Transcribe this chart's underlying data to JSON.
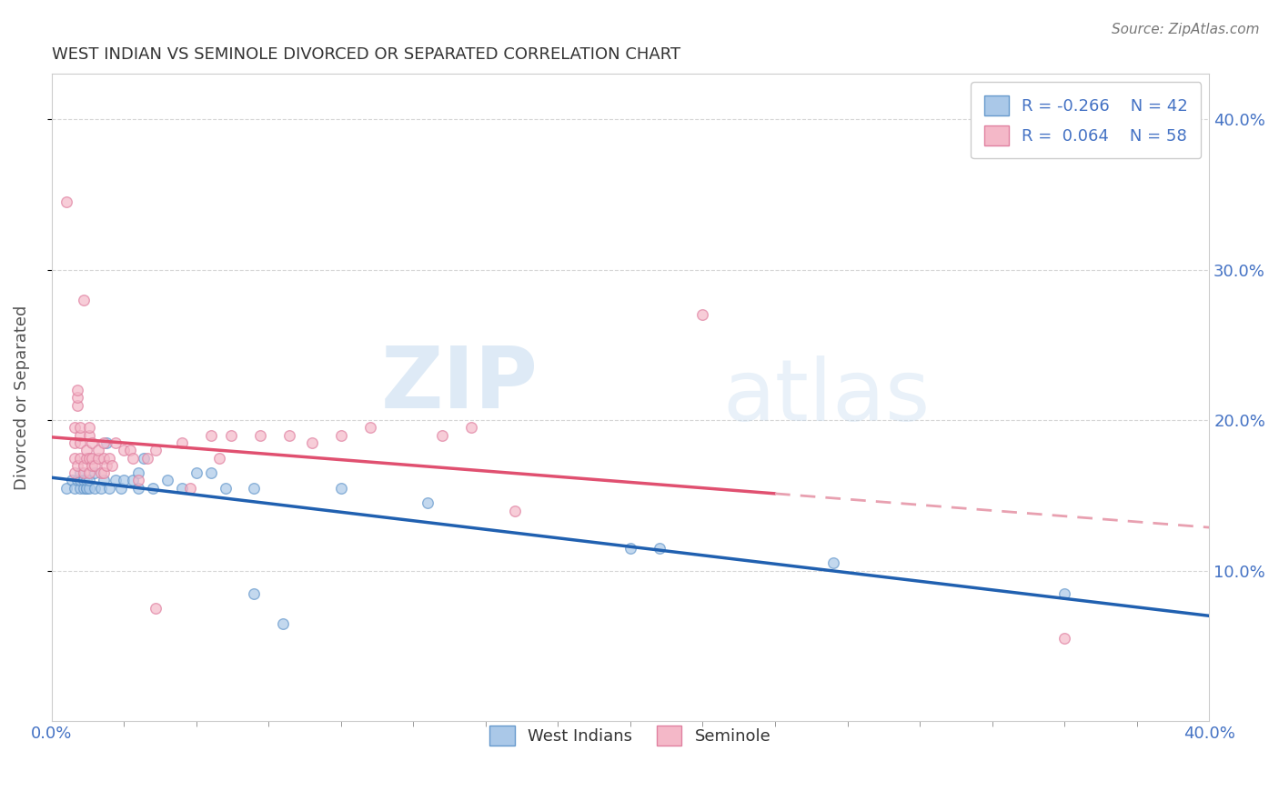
{
  "title": "WEST INDIAN VS SEMINOLE DIVORCED OR SEPARATED CORRELATION CHART",
  "source": "Source: ZipAtlas.com",
  "ylabel": "Divorced or Separated",
  "ytick_vals": [
    0.1,
    0.2,
    0.3,
    0.4
  ],
  "ytick_labels": [
    "10.0%",
    "20.0%",
    "30.0%",
    "40.0%"
  ],
  "xlim": [
    0.0,
    0.4
  ],
  "ylim": [
    0.0,
    0.43
  ],
  "legend_r1": "R = -0.266",
  "legend_n1": "N = 42",
  "legend_r2": "R =  0.064",
  "legend_n2": "N = 58",
  "blue_color": "#aac8e8",
  "pink_color": "#f4b8c8",
  "blue_edge_color": "#6699cc",
  "pink_edge_color": "#e080a0",
  "blue_line_color": "#2060b0",
  "pink_line_color": "#e05070",
  "pink_dash_color": "#e8a0b0",
  "blue_scatter": [
    [
      0.005,
      0.155
    ],
    [
      0.007,
      0.16
    ],
    [
      0.008,
      0.155
    ],
    [
      0.009,
      0.16
    ],
    [
      0.01,
      0.155
    ],
    [
      0.01,
      0.16
    ],
    [
      0.01,
      0.165
    ],
    [
      0.011,
      0.155
    ],
    [
      0.011,
      0.16
    ],
    [
      0.012,
      0.155
    ],
    [
      0.012,
      0.155
    ],
    [
      0.012,
      0.16
    ],
    [
      0.013,
      0.155
    ],
    [
      0.013,
      0.16
    ],
    [
      0.015,
      0.155
    ],
    [
      0.015,
      0.165
    ],
    [
      0.017,
      0.155
    ],
    [
      0.018,
      0.16
    ],
    [
      0.019,
      0.185
    ],
    [
      0.02,
      0.155
    ],
    [
      0.022,
      0.16
    ],
    [
      0.024,
      0.155
    ],
    [
      0.025,
      0.16
    ],
    [
      0.028,
      0.16
    ],
    [
      0.03,
      0.165
    ],
    [
      0.03,
      0.155
    ],
    [
      0.032,
      0.175
    ],
    [
      0.035,
      0.155
    ],
    [
      0.04,
      0.16
    ],
    [
      0.045,
      0.155
    ],
    [
      0.05,
      0.165
    ],
    [
      0.055,
      0.165
    ],
    [
      0.06,
      0.155
    ],
    [
      0.07,
      0.155
    ],
    [
      0.07,
      0.085
    ],
    [
      0.08,
      0.065
    ],
    [
      0.1,
      0.155
    ],
    [
      0.13,
      0.145
    ],
    [
      0.2,
      0.115
    ],
    [
      0.21,
      0.115
    ],
    [
      0.27,
      0.105
    ],
    [
      0.35,
      0.085
    ]
  ],
  "pink_scatter": [
    [
      0.005,
      0.345
    ],
    [
      0.008,
      0.165
    ],
    [
      0.008,
      0.175
    ],
    [
      0.008,
      0.185
    ],
    [
      0.008,
      0.195
    ],
    [
      0.009,
      0.17
    ],
    [
      0.009,
      0.21
    ],
    [
      0.009,
      0.215
    ],
    [
      0.009,
      0.22
    ],
    [
      0.01,
      0.175
    ],
    [
      0.01,
      0.185
    ],
    [
      0.01,
      0.19
    ],
    [
      0.01,
      0.195
    ],
    [
      0.011,
      0.165
    ],
    [
      0.011,
      0.17
    ],
    [
      0.011,
      0.28
    ],
    [
      0.012,
      0.175
    ],
    [
      0.012,
      0.18
    ],
    [
      0.013,
      0.175
    ],
    [
      0.013,
      0.165
    ],
    [
      0.013,
      0.19
    ],
    [
      0.013,
      0.195
    ],
    [
      0.014,
      0.17
    ],
    [
      0.014,
      0.175
    ],
    [
      0.014,
      0.185
    ],
    [
      0.015,
      0.17
    ],
    [
      0.016,
      0.175
    ],
    [
      0.016,
      0.18
    ],
    [
      0.017,
      0.165
    ],
    [
      0.018,
      0.175
    ],
    [
      0.018,
      0.165
    ],
    [
      0.018,
      0.185
    ],
    [
      0.019,
      0.17
    ],
    [
      0.02,
      0.175
    ],
    [
      0.021,
      0.17
    ],
    [
      0.022,
      0.185
    ],
    [
      0.025,
      0.18
    ],
    [
      0.027,
      0.18
    ],
    [
      0.028,
      0.175
    ],
    [
      0.03,
      0.16
    ],
    [
      0.033,
      0.175
    ],
    [
      0.036,
      0.075
    ],
    [
      0.036,
      0.18
    ],
    [
      0.045,
      0.185
    ],
    [
      0.048,
      0.155
    ],
    [
      0.055,
      0.19
    ],
    [
      0.058,
      0.175
    ],
    [
      0.062,
      0.19
    ],
    [
      0.072,
      0.19
    ],
    [
      0.082,
      0.19
    ],
    [
      0.09,
      0.185
    ],
    [
      0.1,
      0.19
    ],
    [
      0.11,
      0.195
    ],
    [
      0.135,
      0.19
    ],
    [
      0.145,
      0.195
    ],
    [
      0.16,
      0.14
    ],
    [
      0.225,
      0.27
    ],
    [
      0.35,
      0.055
    ]
  ],
  "watermark_zip": "ZIP",
  "watermark_atlas": "atlas",
  "background_color": "#ffffff",
  "grid_color": "#cccccc"
}
